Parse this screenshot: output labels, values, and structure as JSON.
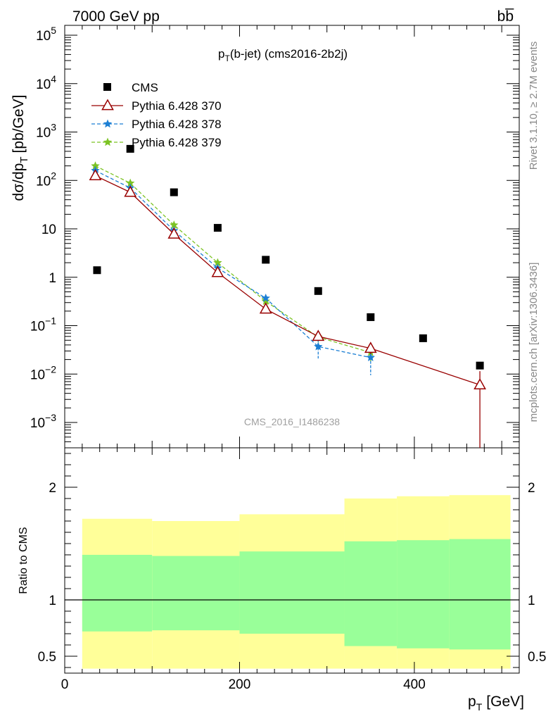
{
  "header": {
    "left": "7000 GeV pp",
    "right": "bb̅"
  },
  "title_main": "p",
  "title_sub": "T",
  "title_rest": "(b-jet) (cms2016-2b2j)",
  "watermark": "CMS_2016_I1486238",
  "side_text_top": "Rivet 3.1.10, ≥ 2.7M events",
  "side_text_bottom": "mcplots.cern.ch [arXiv:1306.3436]",
  "ylabel_main": "dσ/dp",
  "ylabel_sub": "T",
  "ylabel_unit": "[pb/GeV]",
  "ratio_ylabel": "Ratio to CMS",
  "xlabel_main": "p",
  "xlabel_sub": "T",
  "xlabel_unit": "[GeV]",
  "colors": {
    "cms": "#000000",
    "p370": "#990000",
    "p378": "#1c7fd4",
    "p379": "#7cc324",
    "band_inner": "#99ff99",
    "band_outer": "#ffff99"
  },
  "chart_data": {
    "type": "scatter",
    "x_range": [
      0,
      520
    ],
    "y_log": true,
    "y_range": [
      0.0003,
      160000
    ],
    "ratio_y_range": [
      0.35,
      2.35
    ],
    "x_ticks": [
      0,
      200,
      400
    ],
    "y_ticks": [
      {
        "v": 0.001,
        "base": "10",
        "exp": "−3"
      },
      {
        "v": 0.01,
        "base": "10",
        "exp": "−2"
      },
      {
        "v": 0.1,
        "base": "10",
        "exp": "−1"
      },
      {
        "v": 1,
        "base": "1",
        "exp": ""
      },
      {
        "v": 10,
        "base": "10",
        "exp": ""
      },
      {
        "v": 100,
        "base": "10",
        "exp": "2"
      },
      {
        "v": 1000,
        "base": "10",
        "exp": "3"
      },
      {
        "v": 10000,
        "base": "10",
        "exp": "4"
      },
      {
        "v": 100000,
        "base": "10",
        "exp": "5"
      }
    ],
    "ratio_ticks": [
      {
        "v": 0.5,
        "label": "0.5"
      },
      {
        "v": 1,
        "label": "1"
      },
      {
        "v": 2,
        "label": "2"
      }
    ],
    "legend": [
      {
        "name": "CMS",
        "style": "cms"
      },
      {
        "name": "Pythia 6.428 370",
        "style": "p370"
      },
      {
        "name": "Pythia 6.428 378",
        "style": "p378"
      },
      {
        "name": "Pythia 6.428 379",
        "style": "p379"
      }
    ],
    "cms": {
      "name": "CMS",
      "x": [
        37,
        75,
        125,
        175,
        230,
        290,
        350,
        410,
        475
      ],
      "xlo": [
        20,
        50,
        100,
        150,
        200,
        260,
        320,
        380,
        440
      ],
      "xhi": [
        50,
        100,
        150,
        200,
        260,
        320,
        380,
        440,
        510
      ],
      "y": [
        1.4,
        450,
        57,
        10.5,
        2.3,
        0.52,
        0.15,
        0.055,
        0.015
      ]
    },
    "series": [
      {
        "name": "Pythia 6.428 370",
        "style": "p370",
        "x": [
          35,
          75,
          125,
          175,
          230,
          290,
          350,
          475
        ],
        "y": [
          125,
          57,
          7.8,
          1.25,
          0.22,
          0.06,
          0.034,
          0.006
        ],
        "ylo": [
          125,
          57,
          7.8,
          1.25,
          0.22,
          0.05,
          0.026,
          0.0003
        ],
        "yhi": [
          125,
          57,
          7.8,
          1.25,
          0.22,
          0.075,
          0.044,
          0.0115
        ]
      },
      {
        "name": "Pythia 6.428 378",
        "style": "p378",
        "x": [
          35,
          75,
          125,
          175,
          230,
          290,
          350
        ],
        "y": [
          160,
          70,
          9.2,
          1.55,
          0.37,
          0.037,
          0.022
        ],
        "ylo": [
          160,
          70,
          9.2,
          1.55,
          0.37,
          0.021,
          0.0095
        ],
        "yhi": [
          160,
          70,
          9.2,
          1.55,
          0.37,
          0.053,
          0.034
        ]
      },
      {
        "name": "Pythia 6.428 379",
        "style": "p379",
        "x": [
          35,
          75,
          125,
          175,
          230,
          290,
          350
        ],
        "y": [
          200,
          88,
          12,
          2.0,
          0.32,
          0.058,
          0.028
        ],
        "ylo": [
          200,
          88,
          12,
          2.0,
          0.32,
          0.045,
          0.018
        ],
        "yhi": [
          200,
          88,
          12,
          2.0,
          0.32,
          0.07,
          0.038
        ]
      }
    ],
    "ratio_bands": [
      {
        "x0": 20,
        "x1": 100,
        "in_lo": 0.72,
        "in_hi": 1.4,
        "out_lo": 0.39,
        "out_hi": 1.72
      },
      {
        "x0": 100,
        "x1": 200,
        "in_lo": 0.73,
        "in_hi": 1.39,
        "out_lo": 0.39,
        "out_hi": 1.7
      },
      {
        "x0": 200,
        "x1": 320,
        "in_lo": 0.7,
        "in_hi": 1.43,
        "out_lo": 0.39,
        "out_hi": 1.76
      },
      {
        "x0": 320,
        "x1": 380,
        "in_lo": 0.59,
        "in_hi": 1.52,
        "out_lo": 0.39,
        "out_hi": 1.9
      },
      {
        "x0": 380,
        "x1": 440,
        "in_lo": 0.57,
        "in_hi": 1.53,
        "out_lo": 0.39,
        "out_hi": 1.92
      },
      {
        "x0": 440,
        "x1": 510,
        "in_lo": 0.56,
        "in_hi": 1.54,
        "out_lo": 0.39,
        "out_hi": 1.93
      }
    ]
  }
}
